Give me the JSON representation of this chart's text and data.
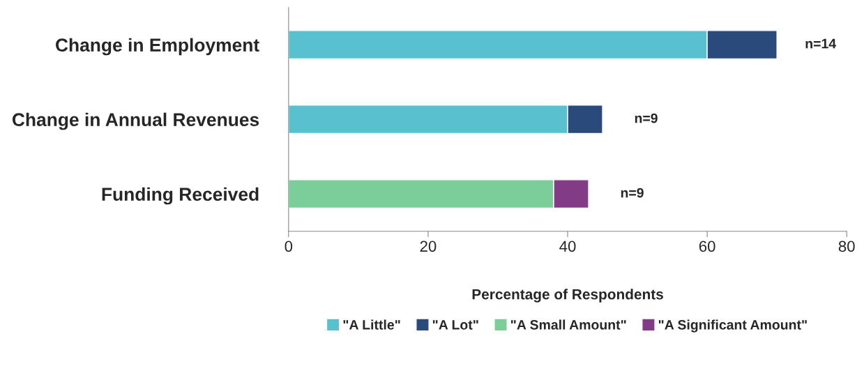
{
  "chart_data": {
    "type": "bar",
    "orientation": "horizontal",
    "stacked": true,
    "categories": [
      "Change in Employment",
      "Change in Annual Revenues",
      "Funding Received"
    ],
    "series": [
      {
        "name": "\"A Little\"",
        "color": "#58c0cf",
        "values": [
          60,
          40,
          null
        ]
      },
      {
        "name": "\"A Lot\"",
        "color": "#2a4a7b",
        "values": [
          10,
          5,
          null
        ]
      },
      {
        "name": "\"A Small Amount\"",
        "color": "#7bcd9a",
        "values": [
          null,
          null,
          38
        ]
      },
      {
        "name": "\"A Significant Amount\"",
        "color": "#823b85",
        "values": [
          null,
          null,
          5
        ]
      }
    ],
    "xlim": [
      0,
      80
    ],
    "xticks": [
      0,
      20,
      40,
      60,
      80
    ],
    "xlabel": "Percentage of Respondents",
    "annotations": [
      "n=14",
      "n=9",
      "n=9"
    ],
    "legend": "bottom",
    "grid": false
  }
}
